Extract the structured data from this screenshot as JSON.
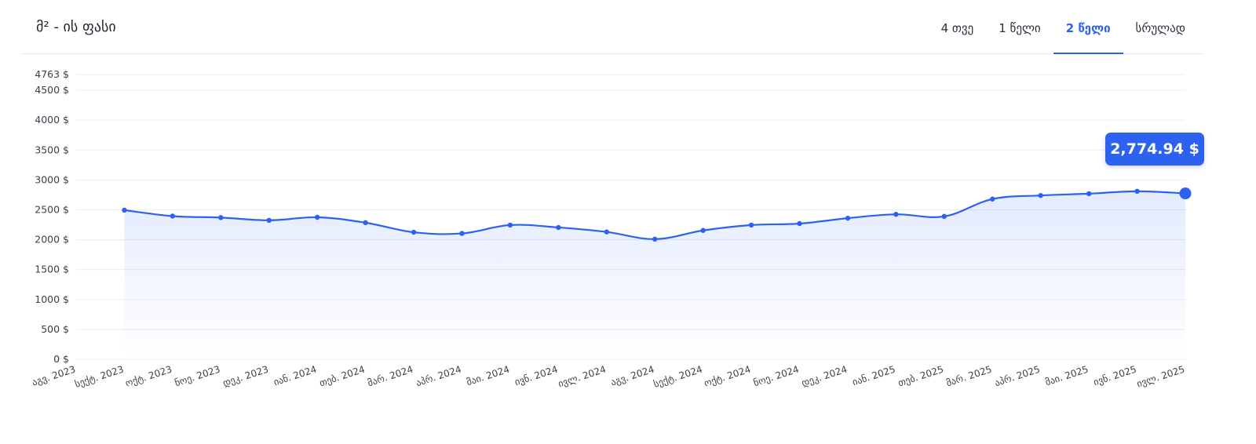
{
  "header": {
    "title": "მ² - ის ფასი",
    "tabs": [
      {
        "label": "4 თვე",
        "active": false
      },
      {
        "label": "1 წელი",
        "active": false
      },
      {
        "label": "2 წელი",
        "active": true
      },
      {
        "label": "სრულად",
        "active": false
      }
    ]
  },
  "tooltip": {
    "value": "2,774.94 $"
  },
  "colors": {
    "accent": "#2d62f0",
    "grid": "#e9ebef",
    "axis_text": "#3a3f4a"
  },
  "chart_data": {
    "type": "area",
    "title": "",
    "xlabel": "",
    "ylabel": "",
    "ylim": [
      0,
      4763
    ],
    "y_ticks": [
      0,
      500,
      1000,
      1500,
      2000,
      2500,
      3000,
      3500,
      4000,
      4500,
      4763
    ],
    "y_tick_labels": [
      "0 $",
      "500 $",
      "1000 $",
      "1500 $",
      "2000 $",
      "2500 $",
      "3000 $",
      "3500 $",
      "4000 $",
      "4500 $",
      "4763 $"
    ],
    "grid": true,
    "categories": [
      "აგვ. 2023",
      "სექტ. 2023",
      "ოქტ. 2023",
      "ნოე. 2023",
      "დეკ. 2023",
      "იან. 2024",
      "თებ. 2024",
      "მარ. 2024",
      "აპრ. 2024",
      "მაი. 2024",
      "ივნ. 2024",
      "ივლ. 2024",
      "აგვ. 2024",
      "სექტ. 2024",
      "ოქტ. 2024",
      "ნოე. 2024",
      "დეკ. 2024",
      "იან. 2025",
      "თებ. 2025",
      "მარ. 2025",
      "აპრ. 2025",
      "მაი. 2025",
      "ივნ. 2025",
      "ივლ. 2025"
    ],
    "series": [
      {
        "values": [
          null,
          2495,
          2395,
          2370,
          2325,
          2375,
          2285,
          2125,
          2105,
          2245,
          2205,
          2130,
          2010,
          2155,
          2245,
          2270,
          2360,
          2425,
          2390,
          2680,
          2740,
          2770,
          2810,
          2774.94
        ]
      }
    ]
  }
}
